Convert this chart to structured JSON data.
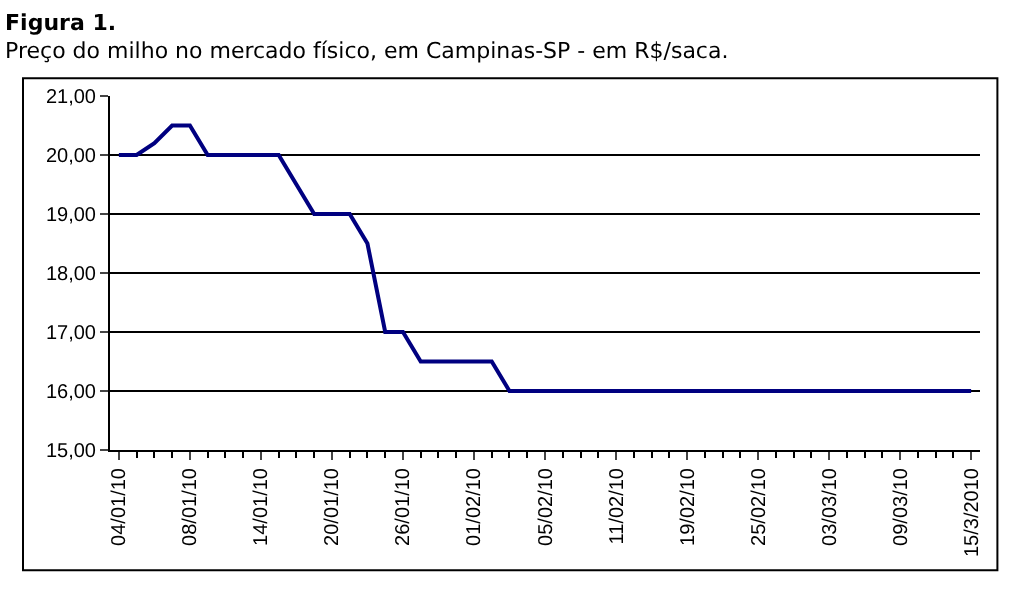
{
  "chart_data": {
    "type": "line",
    "title": "Figura 1.",
    "subtitle": "Preço do milho no mercado físico, em Campinas-SP - em R$/saca.",
    "categories": [
      "04/01/10",
      null,
      null,
      null,
      "08/01/10",
      null,
      null,
      null,
      "14/01/10",
      null,
      null,
      null,
      "20/01/10",
      null,
      null,
      null,
      "26/01/10",
      null,
      null,
      null,
      "01/02/10",
      null,
      null,
      null,
      "05/02/10",
      null,
      null,
      null,
      "11/02/10",
      null,
      null,
      null,
      "19/02/10",
      null,
      null,
      null,
      "25/02/10",
      null,
      null,
      null,
      "03/03/10",
      null,
      null,
      null,
      "09/03/10",
      null,
      null,
      null,
      "15/3/2010"
    ],
    "series": [
      {
        "color": "#000080",
        "values": [
          20.0,
          20.0,
          20.2,
          20.5,
          20.5,
          20.0,
          20.0,
          20.0,
          20.0,
          20.0,
          19.5,
          19.0,
          19.0,
          19.0,
          18.5,
          17.0,
          17.0,
          16.5,
          16.5,
          16.5,
          16.5,
          16.5,
          16.0,
          16.0,
          16.0,
          16.0,
          16.0,
          16.0,
          16.0,
          16.0,
          16.0,
          16.0,
          16.0,
          16.0,
          16.0,
          16.0,
          16.0,
          16.0,
          16.0,
          16.0,
          16.0,
          16.0,
          16.0,
          16.0,
          16.0,
          16.0,
          16.0,
          16.0,
          16.0
        ]
      }
    ],
    "ylim": [
      15,
      21
    ],
    "yticks": [
      {
        "value": 15,
        "label": "15,00"
      },
      {
        "value": 16,
        "label": "16,00"
      },
      {
        "value": 17,
        "label": "17,00"
      },
      {
        "value": 18,
        "label": "18,00"
      },
      {
        "value": 19,
        "label": "19,00"
      },
      {
        "value": 20,
        "label": "20,00"
      },
      {
        "value": 21,
        "label": "21,00"
      }
    ],
    "grid": "y",
    "marker": "none",
    "line_style": "solid"
  }
}
